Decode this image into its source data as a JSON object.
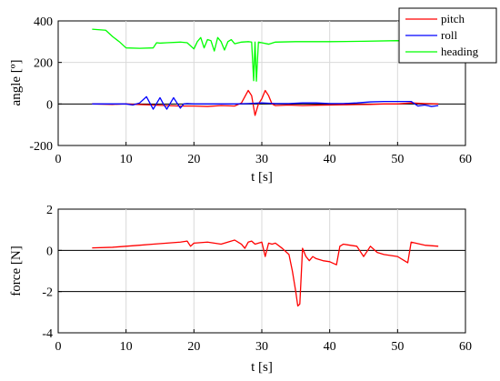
{
  "chart_data": [
    {
      "type": "line",
      "xlabel": "t [s]",
      "ylabel": "angle [º]",
      "xlim": [
        0,
        60
      ],
      "ylim": [
        -200,
        400
      ],
      "xticks": [
        0,
        10,
        20,
        30,
        40,
        50,
        60
      ],
      "yticks": [
        -200,
        0,
        200,
        400
      ],
      "grid": true,
      "legend": "top-right",
      "series": [
        {
          "name": "pitch",
          "color": "#ff0000",
          "x": [
            5,
            8,
            10,
            12,
            14,
            16,
            18,
            20,
            22,
            24,
            26,
            27,
            28,
            28.5,
            29,
            29.5,
            30,
            30.5,
            31,
            31.5,
            32,
            34,
            36,
            38,
            40,
            42,
            44,
            46,
            48,
            50,
            52,
            54,
            56
          ],
          "y": [
            0,
            -2,
            0,
            -3,
            -5,
            -8,
            -10,
            -10,
            -12,
            -8,
            -10,
            5,
            65,
            40,
            -55,
            0,
            25,
            65,
            40,
            0,
            -8,
            -5,
            -8,
            -6,
            -5,
            -4,
            -3,
            -2,
            0,
            0,
            5,
            2,
            0
          ]
        },
        {
          "name": "roll",
          "color": "#0000ff",
          "x": [
            5,
            8,
            10,
            11,
            12,
            13,
            13.5,
            14,
            15,
            15.5,
            16,
            17,
            17.5,
            18,
            18.5,
            19,
            20,
            22,
            24,
            26,
            28,
            30,
            32,
            34,
            36,
            38,
            40,
            42,
            44,
            46,
            48,
            50,
            52,
            53,
            54,
            55,
            56
          ],
          "y": [
            0,
            0,
            0,
            -5,
            5,
            35,
            5,
            -25,
            30,
            0,
            -25,
            30,
            5,
            -20,
            0,
            2,
            0,
            0,
            0,
            0,
            2,
            5,
            2,
            2,
            5,
            5,
            2,
            2,
            5,
            10,
            12,
            12,
            12,
            -10,
            -5,
            -12,
            -8
          ]
        },
        {
          "name": "heading",
          "color": "#00ff00",
          "x": [
            5,
            7,
            8,
            9,
            10,
            12,
            14,
            14.5,
            15,
            16,
            18,
            19,
            20,
            20.5,
            21,
            21.5,
            22,
            22.5,
            23,
            23.5,
            24,
            24.5,
            25,
            25.5,
            26,
            27,
            28,
            28.5,
            28.8,
            29,
            29.2,
            29.5,
            30,
            31,
            32,
            35,
            40,
            45,
            50,
            52,
            54,
            56
          ],
          "y": [
            360,
            355,
            325,
            300,
            270,
            268,
            270,
            295,
            293,
            295,
            298,
            295,
            265,
            300,
            320,
            270,
            310,
            305,
            255,
            320,
            300,
            260,
            300,
            310,
            290,
            298,
            300,
            298,
            112,
            298,
            110,
            298,
            295,
            288,
            298,
            300,
            300,
            302,
            305,
            300,
            305,
            302
          ]
        }
      ]
    },
    {
      "type": "line",
      "xlabel": "t [s]",
      "ylabel": "force [N]",
      "xlim": [
        0,
        60
      ],
      "ylim": [
        -4,
        2
      ],
      "xticks": [
        0,
        10,
        20,
        30,
        40,
        50,
        60
      ],
      "yticks": [
        -4,
        -2,
        0,
        2
      ],
      "grid": true,
      "series": [
        {
          "color": "#ff0000",
          "x": [
            5,
            8,
            10,
            12,
            14,
            16,
            18,
            19,
            19.5,
            20,
            22,
            24,
            26,
            27,
            27.5,
            28,
            28.5,
            29,
            30,
            30.5,
            31,
            31.5,
            32,
            33,
            34,
            34.5,
            35,
            35.3,
            35.6,
            36,
            36.5,
            37,
            37.5,
            38,
            39,
            40,
            41,
            41.5,
            42,
            43,
            44,
            45,
            46,
            47,
            48,
            50,
            51,
            51.5,
            52,
            54,
            56
          ],
          "y": [
            0.12,
            0.15,
            0.2,
            0.25,
            0.3,
            0.35,
            0.4,
            0.45,
            0.2,
            0.35,
            0.4,
            0.3,
            0.5,
            0.3,
            0.1,
            0.4,
            0.45,
            0.3,
            0.4,
            -0.3,
            0.35,
            0.3,
            0.35,
            0.1,
            -0.2,
            -1.0,
            -2.0,
            -2.7,
            -2.6,
            0.1,
            -0.3,
            -0.5,
            -0.3,
            -0.4,
            -0.5,
            -0.55,
            -0.7,
            0.2,
            0.3,
            0.25,
            0.2,
            -0.3,
            0.2,
            -0.1,
            -0.2,
            -0.3,
            -0.5,
            -0.6,
            0.4,
            0.25,
            0.2
          ]
        }
      ]
    }
  ]
}
